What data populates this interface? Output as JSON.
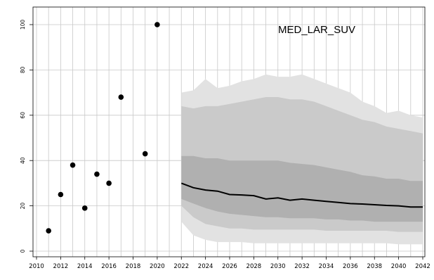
{
  "chart_data": {
    "type": "scatter",
    "title": "MED_LAR_SUV",
    "xlabel": "",
    "ylabel": "",
    "xlim": [
      2010,
      2042
    ],
    "ylim": [
      0,
      100
    ],
    "x_ticks": [
      2010,
      2012,
      2014,
      2016,
      2018,
      2020,
      2022,
      2024,
      2026,
      2028,
      2030,
      2032,
      2034,
      2036,
      2038,
      2040,
      2042
    ],
    "y_ticks": [
      0,
      20,
      40,
      60,
      80,
      100
    ],
    "grid": true,
    "observed": {
      "x": [
        2011,
        2012,
        2013,
        2014,
        2015,
        2016,
        2017,
        2019,
        2020
      ],
      "y": [
        9,
        25,
        38,
        19,
        34,
        30,
        68,
        43,
        100
      ]
    },
    "forecast": {
      "x": [
        2022,
        2023,
        2024,
        2025,
        2026,
        2027,
        2028,
        2029,
        2030,
        2031,
        2032,
        2033,
        2034,
        2035,
        2036,
        2037,
        2038,
        2039,
        2040,
        2041,
        2042
      ],
      "median": [
        30,
        28,
        27,
        26.5,
        25,
        24.8,
        24.5,
        23,
        23.5,
        22.5,
        23,
        22.5,
        22,
        21.5,
        21,
        20.8,
        20.5,
        20.2,
        20,
        19.5,
        19.5
      ],
      "band_outer": {
        "lower": [
          13,
          7,
          5,
          4,
          4,
          4,
          3.5,
          3.5,
          3.5,
          3.5,
          3.5,
          3.5,
          3.5,
          3.5,
          3.5,
          3.5,
          3.5,
          3.5,
          3,
          3,
          3
        ],
        "upper": [
          70,
          71,
          76,
          72,
          73,
          75,
          76,
          78,
          77,
          77,
          78,
          76,
          74,
          72,
          70,
          66,
          64,
          61,
          62,
          60,
          59
        ]
      },
      "band_mid": {
        "lower": [
          20,
          15,
          12,
          11,
          10,
          10,
          9.5,
          9.5,
          9.5,
          9.5,
          9.5,
          9.5,
          9,
          9,
          9,
          9,
          9,
          9,
          8.5,
          8.5,
          8.5
        ]
      },
      "band_mid_upper": [
        64,
        63,
        64,
        64,
        65,
        66,
        67,
        68,
        68,
        67,
        67,
        66,
        64,
        62,
        60,
        58,
        57,
        55,
        54,
        53,
        52
      ],
      "band_inner": {
        "lower": [
          23,
          21,
          19,
          17.5,
          16.5,
          16,
          15.5,
          15,
          15,
          14.5,
          14.5,
          14.5,
          14,
          14,
          13.5,
          13.5,
          13,
          13,
          13,
          13,
          13
        ],
        "upper": [
          42,
          42,
          41,
          41,
          40,
          40,
          40,
          40,
          40,
          39,
          38.5,
          38,
          37,
          36,
          35,
          33.5,
          33,
          32,
          32,
          31,
          31
        ]
      }
    },
    "colors": {
      "band_outer": "#e2e2e2",
      "band_mid": "#cacaca",
      "band_inner": "#b0b0b0",
      "median_line": "#000000",
      "points": "#000000",
      "grid": "#c8c8c8"
    }
  }
}
